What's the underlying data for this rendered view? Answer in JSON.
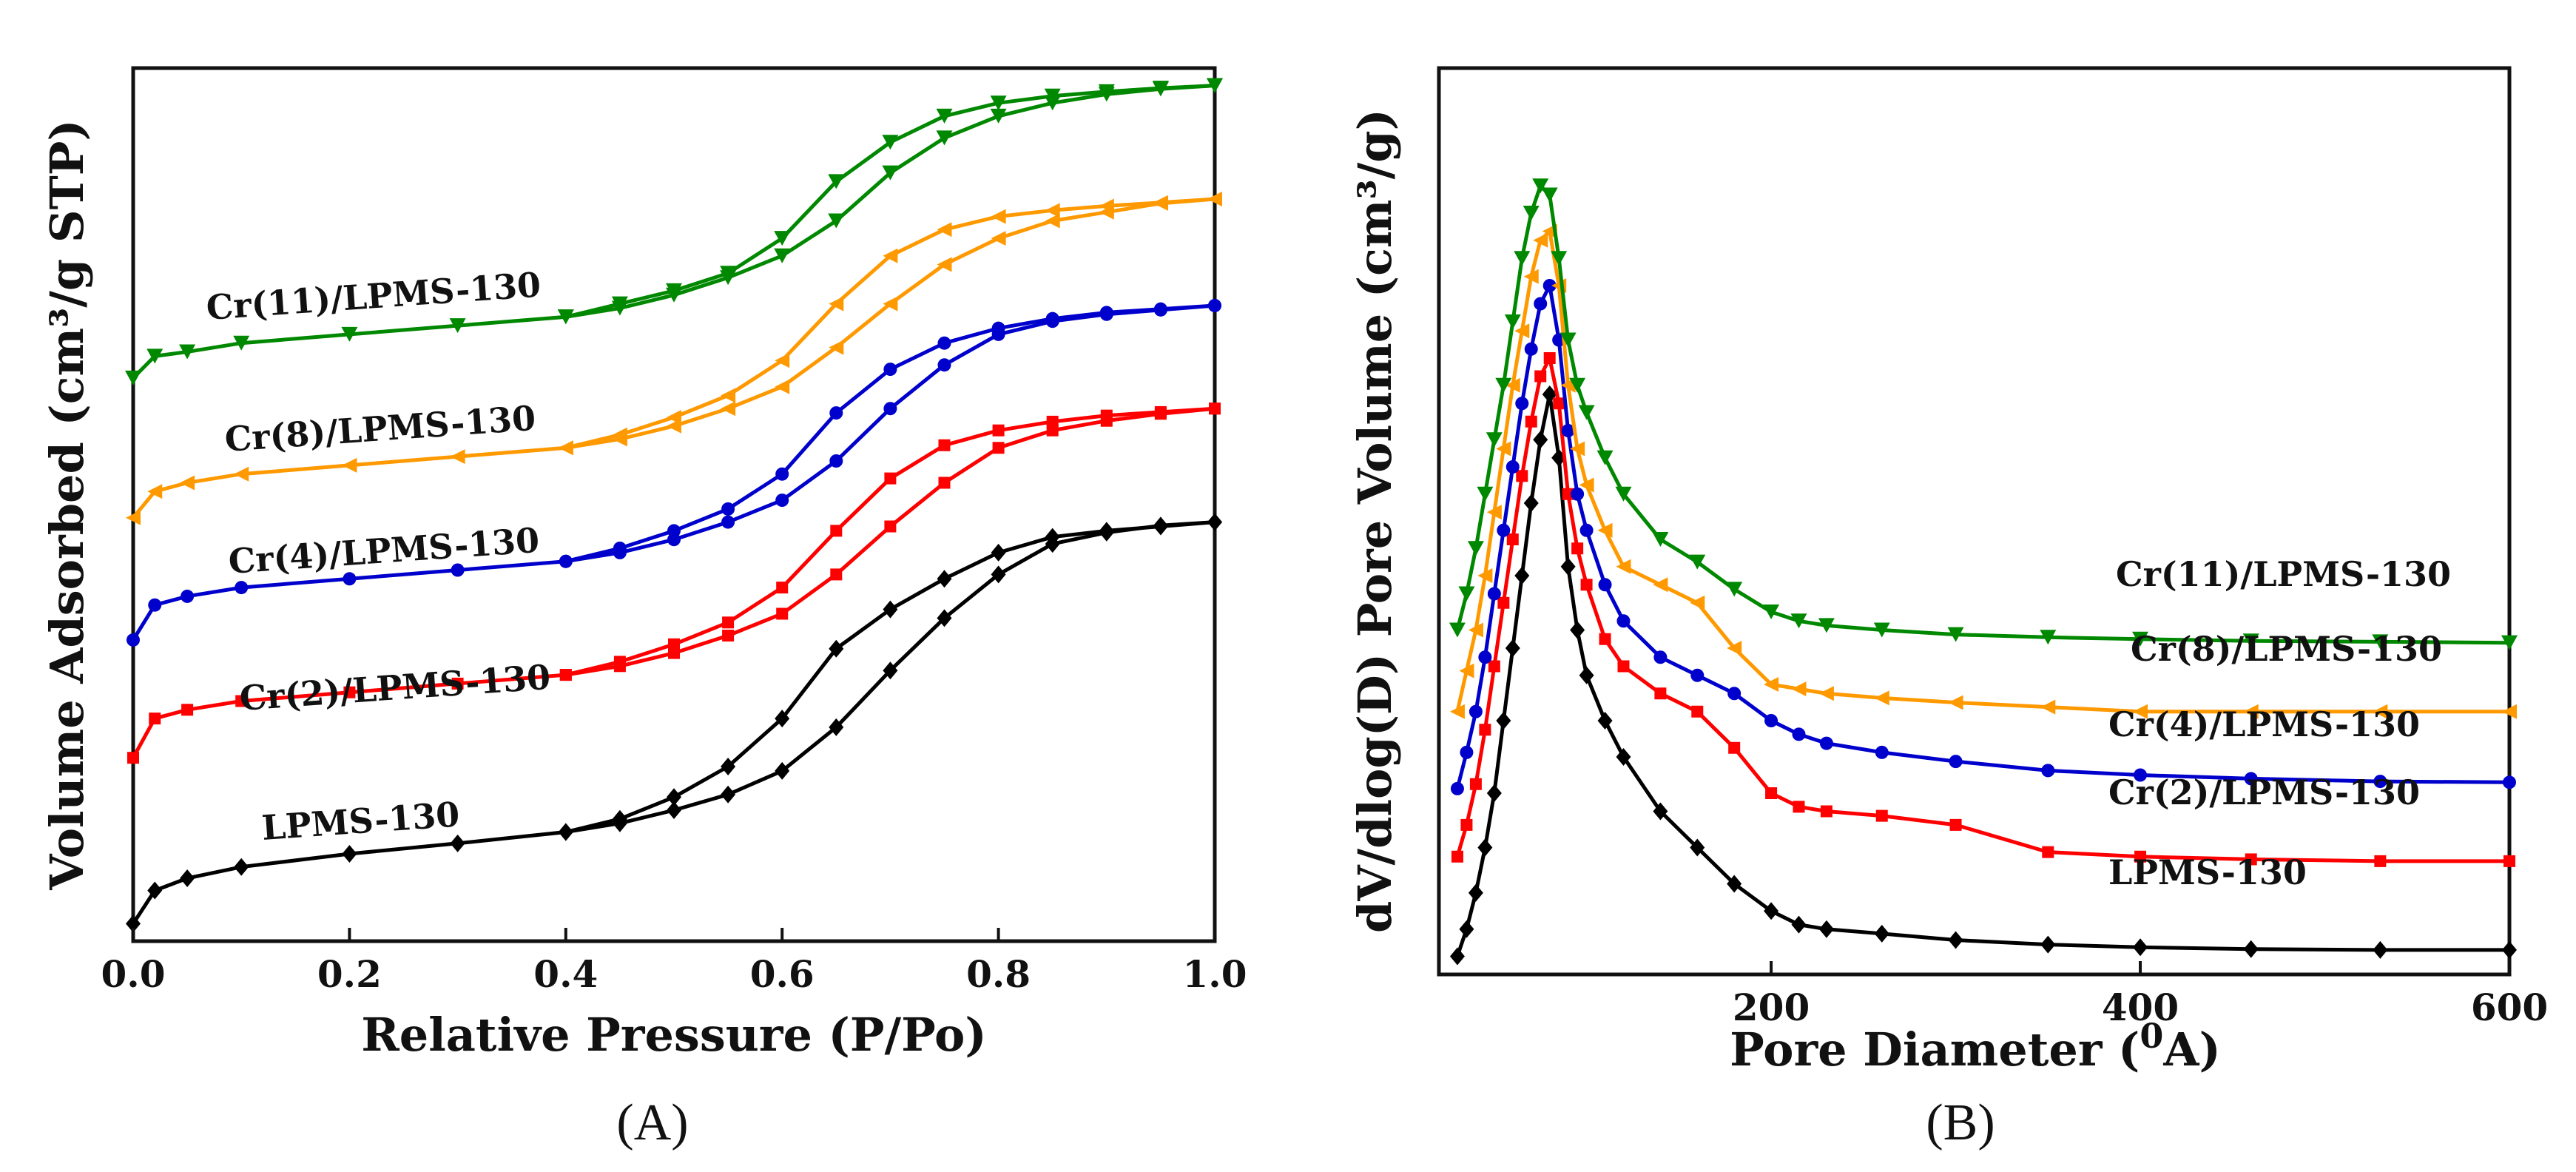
{
  "chart_data": [
    {
      "type": "line",
      "panel_label": "(A)",
      "xlabel": "Relative Pressure (P/Po)",
      "ylabel": "Volume Adsorbed (cm³/g STP)",
      "xlim": [
        0,
        1.0
      ],
      "ylim": [
        0,
        100
      ],
      "xticks": [
        "0.0",
        "0.2",
        "0.4",
        "0.6",
        "0.8",
        "1.0"
      ],
      "xtick_values": [
        0.0,
        0.2,
        0.4,
        0.6,
        0.8,
        1.0
      ],
      "y_tick_labels_shown": false,
      "series": [
        {
          "name": "LPMS-130",
          "color": "#000000",
          "marker": "diamond",
          "adsorption": {
            "x": [
              0,
              0.02,
              0.05,
              0.1,
              0.2,
              0.3,
              0.4,
              0.45,
              0.5,
              0.55,
              0.6,
              0.65,
              0.7,
              0.75,
              0.8,
              0.85,
              0.9,
              0.95,
              1.0
            ],
            "y": [
              2,
              5.8,
              7.2,
              8.5,
              10,
              11.2,
              12.5,
              13.5,
              15,
              16.8,
              19.5,
              24.5,
              31,
              37,
              42,
              45.5,
              46.8,
              47.6,
              48
            ]
          },
          "desorption": {
            "x": [
              1.0,
              0.95,
              0.9,
              0.85,
              0.8,
              0.75,
              0.7,
              0.65,
              0.6,
              0.55,
              0.5,
              0.45,
              0.4
            ],
            "y": [
              48,
              47.5,
              47,
              46.3,
              44.5,
              41.5,
              38,
              33.5,
              25.5,
              20,
              16.5,
              14,
              12.5
            ]
          }
        },
        {
          "name": "Cr(2)/LPMS-130",
          "color": "#ff0000",
          "marker": "square",
          "adsorption": {
            "x": [
              0,
              0.02,
              0.05,
              0.1,
              0.2,
              0.3,
              0.4,
              0.45,
              0.5,
              0.55,
              0.6,
              0.65,
              0.7,
              0.75,
              0.8,
              0.85,
              0.9,
              0.95,
              1.0
            ],
            "y": [
              21,
              25.5,
              26.5,
              27.5,
              28.5,
              29.5,
              30.5,
              31.5,
              33,
              35,
              37.5,
              42,
              47.5,
              52.5,
              56.5,
              58.5,
              59.6,
              60.4,
              61
            ]
          },
          "desorption": {
            "x": [
              1.0,
              0.95,
              0.9,
              0.85,
              0.8,
              0.75,
              0.7,
              0.65,
              0.6,
              0.55,
              0.5,
              0.45,
              0.4
            ],
            "y": [
              61,
              60.6,
              60.2,
              59.5,
              58.5,
              56.8,
              53,
              47,
              40.5,
              36.5,
              34,
              32,
              30.5
            ]
          }
        },
        {
          "name": "Cr(4)/LPMS-130",
          "color": "#0000cc",
          "marker": "circle",
          "adsorption": {
            "x": [
              0,
              0.02,
              0.05,
              0.1,
              0.2,
              0.3,
              0.4,
              0.45,
              0.5,
              0.55,
              0.6,
              0.65,
              0.7,
              0.75,
              0.8,
              0.85,
              0.9,
              0.95,
              1.0
            ],
            "y": [
              34.5,
              38.5,
              39.5,
              40.5,
              41.5,
              42.5,
              43.5,
              44.5,
              46,
              48,
              50.5,
              55,
              61,
              66,
              69.5,
              71,
              71.8,
              72.3,
              72.8
            ]
          },
          "desorption": {
            "x": [
              1.0,
              0.95,
              0.9,
              0.85,
              0.8,
              0.75,
              0.7,
              0.65,
              0.6,
              0.55,
              0.5,
              0.45,
              0.4
            ],
            "y": [
              72.8,
              72.4,
              72,
              71.3,
              70.2,
              68.5,
              65.5,
              60.5,
              53.5,
              49.5,
              47,
              45,
              43.5
            ]
          }
        },
        {
          "name": "Cr(8)/LPMS-130",
          "color": "#ff9900",
          "marker": "triangle-left",
          "adsorption": {
            "x": [
              0,
              0.02,
              0.05,
              0.1,
              0.2,
              0.3,
              0.4,
              0.45,
              0.5,
              0.55,
              0.6,
              0.65,
              0.7,
              0.75,
              0.8,
              0.85,
              0.9,
              0.95,
              1.0
            ],
            "y": [
              48.5,
              51.5,
              52.5,
              53.5,
              54.5,
              55.5,
              56.5,
              57.5,
              59,
              61,
              63.5,
              68,
              73,
              77.5,
              80.5,
              82.5,
              83.5,
              84.5,
              85
            ]
          },
          "desorption": {
            "x": [
              1.0,
              0.95,
              0.9,
              0.85,
              0.8,
              0.75,
              0.7,
              0.65,
              0.6,
              0.55,
              0.5,
              0.45,
              0.4
            ],
            "y": [
              85,
              84.6,
              84.2,
              83.7,
              83,
              81.5,
              78.5,
              73,
              66.5,
              62.5,
              60,
              58,
              56.5
            ]
          }
        },
        {
          "name": "Cr(11)/LPMS-130",
          "color": "#008800",
          "marker": "triangle-down",
          "adsorption": {
            "x": [
              0,
              0.02,
              0.05,
              0.1,
              0.2,
              0.3,
              0.4,
              0.45,
              0.5,
              0.55,
              0.6,
              0.65,
              0.7,
              0.75,
              0.8,
              0.85,
              0.9,
              0.95,
              1.0
            ],
            "y": [
              64.5,
              67,
              67.5,
              68.5,
              69.5,
              70.5,
              71.5,
              72.5,
              74,
              76,
              78.5,
              82.5,
              88,
              92,
              94.5,
              96,
              97,
              97.6,
              98
            ]
          },
          "desorption": {
            "x": [
              1.0,
              0.95,
              0.9,
              0.85,
              0.8,
              0.75,
              0.7,
              0.65,
              0.6,
              0.55,
              0.5,
              0.45,
              0.4
            ],
            "y": [
              98,
              97.7,
              97.3,
              96.8,
              96,
              94.5,
              91.5,
              87,
              80.5,
              76.5,
              74.5,
              73,
              71.5
            ]
          }
        }
      ],
      "series_labels": [
        "Cr(11)/LPMS-130",
        "Cr(8)/LPMS-130",
        "Cr(4)/LPMS-130",
        "Cr(2)/LPMS-130",
        "LPMS-130"
      ]
    },
    {
      "type": "line",
      "panel_label": "(B)",
      "xlabel_main": "Pore Diameter (",
      "xlabel_sup": "0",
      "xlabel_unit": "A)",
      "ylabel": "dV/dlog(D) Pore Volume (cm³/g)",
      "xlim": [
        20,
        600
      ],
      "ylim": [
        0,
        100
      ],
      "xticks": [
        "200",
        "400",
        "600"
      ],
      "xtick_values": [
        200,
        400,
        600
      ],
      "y_tick_labels_shown": false,
      "series": [
        {
          "name": "LPMS-130",
          "color": "#000000",
          "marker": "diamond",
          "x": [
            30,
            35,
            40,
            45,
            50,
            55,
            60,
            65,
            70,
            75,
            80,
            85,
            90,
            95,
            100,
            110,
            120,
            140,
            160,
            180,
            200,
            215,
            230,
            260,
            300,
            350,
            400,
            460,
            530,
            600
          ],
          "y": [
            2,
            5,
            9,
            14,
            20,
            28,
            36,
            44,
            52,
            59,
            64,
            57,
            45,
            38,
            33,
            28,
            24,
            18,
            14,
            10,
            7,
            5.5,
            5,
            4.5,
            3.8,
            3.3,
            3,
            2.8,
            2.7,
            2.7
          ]
        },
        {
          "name": "Cr(2)/LPMS-130",
          "color": "#ff0000",
          "marker": "square",
          "x": [
            30,
            35,
            40,
            45,
            50,
            55,
            60,
            65,
            70,
            75,
            80,
            85,
            90,
            95,
            100,
            110,
            120,
            140,
            160,
            180,
            200,
            215,
            230,
            260,
            300,
            350,
            400,
            460,
            530,
            600
          ],
          "y": [
            13,
            16.5,
            21,
            27,
            34,
            41,
            48,
            55,
            61,
            66,
            68,
            63,
            53,
            47,
            43,
            37,
            34,
            31,
            29,
            25,
            20,
            18.5,
            18,
            17.5,
            16.5,
            13.5,
            13,
            12.7,
            12.5,
            12.5
          ]
        },
        {
          "name": "Cr(4)/LPMS-130",
          "color": "#0000cc",
          "marker": "circle",
          "x": [
            30,
            35,
            40,
            45,
            50,
            55,
            60,
            65,
            70,
            75,
            80,
            85,
            90,
            95,
            100,
            110,
            120,
            140,
            160,
            180,
            200,
            215,
            230,
            260,
            300,
            350,
            400,
            460,
            530,
            600
          ],
          "y": [
            20.5,
            24.5,
            29,
            35,
            42,
            49,
            56,
            63,
            69,
            74,
            76,
            70,
            60,
            53,
            49,
            43,
            39,
            35,
            33,
            31,
            28,
            26.5,
            25.5,
            24.5,
            23.5,
            22.5,
            22,
            21.6,
            21.3,
            21.2
          ]
        },
        {
          "name": "Cr(8)/LPMS-130",
          "color": "#ff9900",
          "marker": "triangle-left",
          "x": [
            30,
            35,
            40,
            45,
            50,
            55,
            60,
            65,
            70,
            75,
            80,
            85,
            90,
            95,
            100,
            110,
            120,
            140,
            160,
            180,
            200,
            215,
            230,
            260,
            300,
            350,
            400,
            460,
            530,
            600
          ],
          "y": [
            29,
            33.5,
            38,
            44,
            51,
            58,
            65,
            71,
            77,
            81,
            82,
            76,
            65,
            58,
            54,
            49,
            45,
            43,
            41,
            36,
            32,
            31.5,
            31,
            30.5,
            30,
            29.5,
            29,
            29,
            29,
            29
          ]
        },
        {
          "name": "Cr(11)/LPMS-130",
          "color": "#008800",
          "marker": "triangle-down",
          "x": [
            30,
            35,
            40,
            45,
            50,
            55,
            60,
            65,
            70,
            75,
            80,
            85,
            90,
            95,
            100,
            110,
            120,
            140,
            160,
            180,
            200,
            215,
            230,
            260,
            300,
            350,
            400,
            460,
            530,
            600
          ],
          "y": [
            38,
            42,
            47,
            53,
            59,
            65,
            72,
            79,
            84,
            87,
            86,
            79,
            70,
            65,
            62,
            57,
            53,
            48,
            45.5,
            42.5,
            40,
            39,
            38.5,
            38,
            37.5,
            37.2,
            37,
            36.8,
            36.7,
            36.6
          ]
        }
      ],
      "series_labels": [
        "Cr(11)/LPMS-130",
        "Cr(8)/LPMS-130",
        "Cr(4)/LPMS-130",
        "Cr(2)/LPMS-130",
        "LPMS-130"
      ]
    }
  ]
}
